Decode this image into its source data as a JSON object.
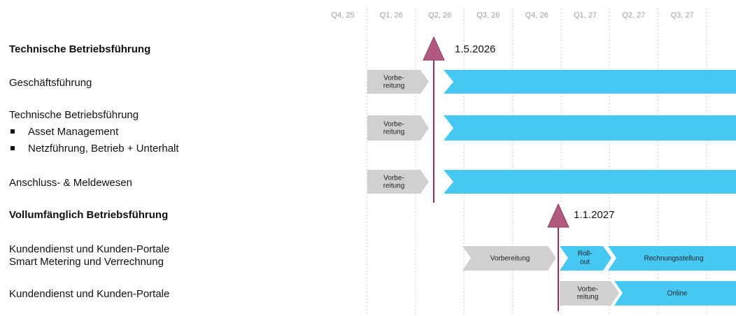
{
  "header": {
    "quarters": [
      "Q4, 25",
      "Q1, 26",
      "Q2, 26",
      "Q3, 26",
      "Q4, 26",
      "Q1, 27",
      "Q2, 27",
      "Q3, 27"
    ]
  },
  "rows": [
    {
      "label": [
        "Technische Betriebsführung"
      ]
    },
    {
      "label": [
        "Geschäftsführung"
      ]
    },
    {
      "label": [
        "Technische Betriebsführung"
      ],
      "bullets": [
        "Asset Management",
        "Netzführung, Betrieb + Unterhalt"
      ]
    },
    {
      "label": [
        "Anschluss- & Meldewesen"
      ]
    },
    {
      "label": [
        "Vollumfänglich Betriebsführung"
      ]
    },
    {
      "label": [
        "Kundendienst und Kunden-Portale",
        "Smart Metering und Verrechnung"
      ]
    },
    {
      "label": [
        "Kundendienst und Kunden-Portale"
      ]
    }
  ],
  "bars": [
    {
      "label": [
        "Vorbe-",
        "reitung"
      ]
    },
    {
      "label": [
        "Vorbe-",
        "reitung"
      ]
    },
    {
      "label": [
        "Vorbe-",
        "reitung"
      ]
    },
    {
      "label": [
        "Vorbereitung"
      ]
    },
    {
      "label": [
        "Roll-",
        "out"
      ]
    },
    {
      "label": [
        "Rechnungsstellung"
      ]
    },
    {
      "label": [
        "Vorbe-",
        "reitung"
      ]
    },
    {
      "label": [
        "Online"
      ]
    }
  ],
  "milestones": [
    {
      "label": "1.5.2026"
    },
    {
      "label": "1.1.2027"
    }
  ]
}
